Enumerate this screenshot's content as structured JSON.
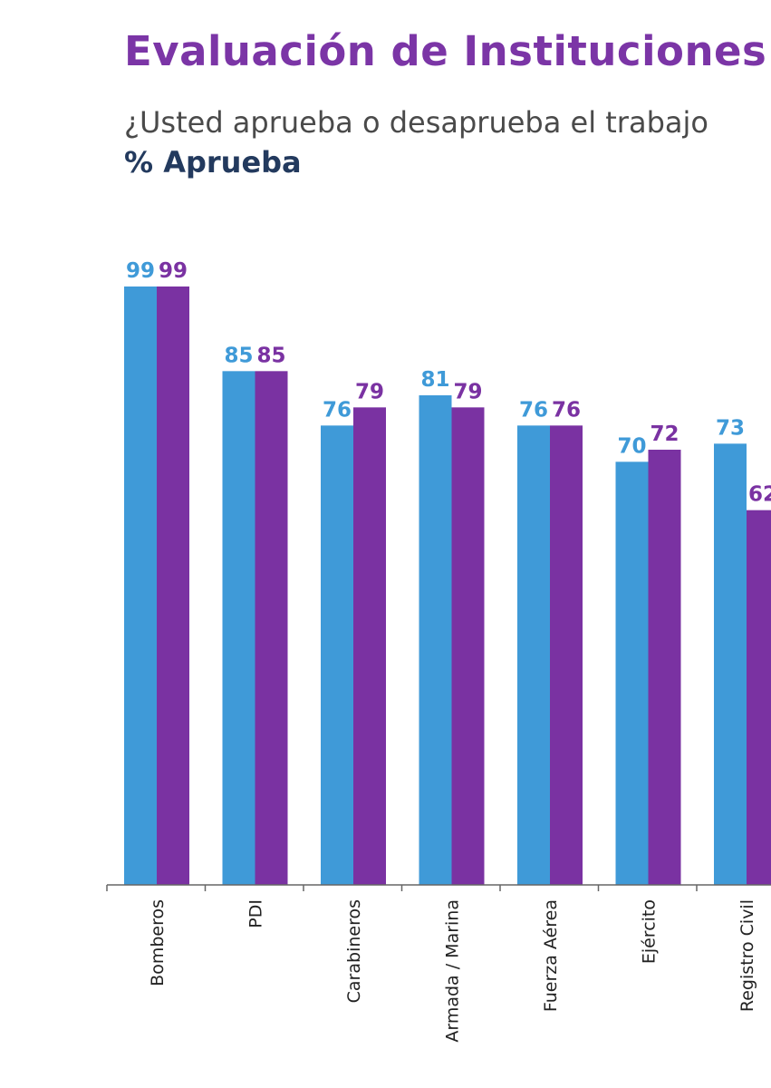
{
  "header": {
    "title": "Evaluación de Instituciones",
    "subtitle": "¿Usted aprueba o desaprueba el trabajo",
    "metric": "% Aprueba"
  },
  "colors": {
    "title": "#7b35a6",
    "subtitle": "#4a4a4a",
    "metric": "#233a5e",
    "series_a": "#3f9ad8",
    "series_b": "#7a32a2",
    "axis": "#666666"
  },
  "chart_data": {
    "type": "bar",
    "categories": [
      "Bomberos",
      "PDI",
      "Carabineros",
      "Armada / Marina",
      "Fuerza Aérea",
      "Ejército",
      "Registro Civil"
    ],
    "series": [
      {
        "values": [
          99,
          85,
          76,
          81,
          76,
          70,
          73
        ]
      },
      {
        "values": [
          99,
          85,
          79,
          79,
          76,
          72,
          62
        ]
      }
    ],
    "ylim": [
      0,
      100
    ],
    "grid": false,
    "legend": "none"
  }
}
